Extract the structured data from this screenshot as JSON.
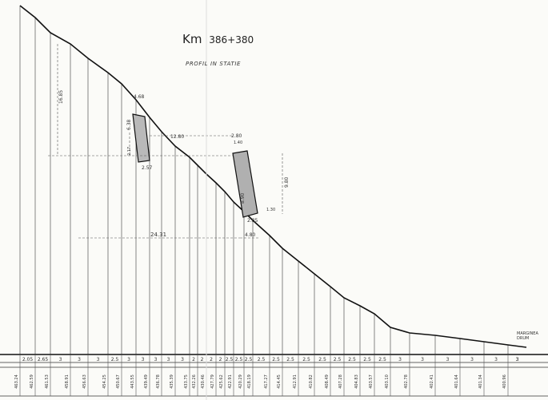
{
  "title": {
    "km_label": "Km",
    "km_value": "386+380"
  },
  "subtitle": "PROFIL IN STATIE",
  "margin_note": [
    "MARGINEA",
    "DRUM"
  ],
  "dimensions": {
    "left_height": "16.85",
    "wall1_top": "4.68",
    "wall1_height": "6.38",
    "wall1_depth": "2.17",
    "wall1_base": "2.57",
    "gap": "12.80",
    "wall2_top_a": "2.80",
    "wall2_top_b": "1.40",
    "wall2_height": "8.90",
    "wall2_right": "9.80",
    "wall2_step": "1.30",
    "wall2_base": "2.35",
    "wall2_bottom": "4.80",
    "total": "24.31"
  },
  "spacing_labels": [
    "2.05",
    "2.65",
    "3",
    "3",
    "3",
    "2.5",
    "3",
    "3",
    "3",
    "3",
    "3",
    "2",
    "2",
    "2",
    "2",
    "2.5",
    "2.5",
    "2.5",
    "2.5",
    "2.5",
    "2.5",
    "2.5",
    "2.5",
    "2.5",
    "2.5",
    "2.5",
    "2.5",
    "3",
    "3",
    "3",
    "3",
    "3",
    "3",
    "3"
  ],
  "elevation_labels": [
    "463.24",
    "462.59",
    "461.53",
    "458.91",
    "456.63",
    "454.25",
    "450.67",
    "443.55",
    "439.49",
    "436.78",
    "435.39",
    "433.75",
    "432.26",
    "430.46",
    "427.79",
    "425.62",
    "422.91",
    "420.29",
    "418.19",
    "417.27",
    "414.45",
    "412.91",
    "410.82",
    "408.49",
    "407.28",
    "404.83",
    "403.57",
    "403.10",
    "402.78",
    "402.41",
    "401.64",
    "401.34",
    "400.96"
  ]
}
